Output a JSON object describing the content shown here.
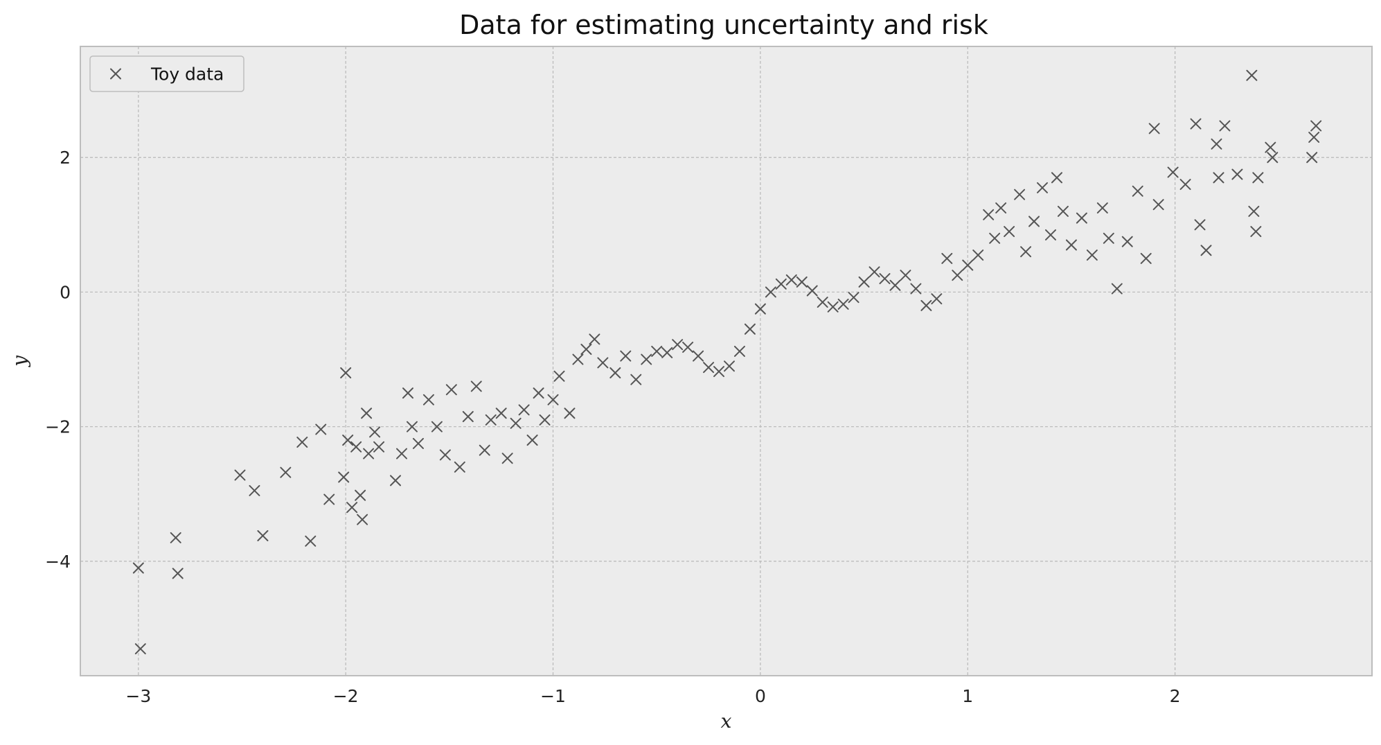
{
  "chart_data": {
    "type": "scatter",
    "title": "Data for estimating uncertainty and risk",
    "xlabel": "x",
    "ylabel": "y",
    "xlim": [
      -3.28,
      2.95
    ],
    "ylim": [
      -5.7,
      3.65
    ],
    "xticks": [
      -3,
      -2,
      -1,
      0,
      1,
      2
    ],
    "xtick_labels": [
      "−3",
      "−2",
      "−1",
      "0",
      "1",
      "2"
    ],
    "yticks": [
      -4,
      -2,
      0,
      2
    ],
    "ytick_labels": [
      "−4",
      "−2",
      "0",
      "2"
    ],
    "grid": true,
    "legend_position": "top-left",
    "marker": "x",
    "colors": {
      "marker": "#555555",
      "axes_bg": "#ececec",
      "grid": "#b8b8b8",
      "spine": "#bdbdbd"
    },
    "series": [
      {
        "name": "Toy data",
        "x": [
          -3.0,
          -2.99,
          -2.82,
          -2.81,
          -2.51,
          -2.44,
          -2.4,
          -2.29,
          -2.21,
          -2.17,
          -2.12,
          -2.08,
          -2.01,
          -2.0,
          -1.99,
          -1.97,
          -1.95,
          -1.93,
          -1.92,
          -1.9,
          -1.89,
          -1.86,
          -1.84,
          -1.76,
          -1.73,
          -1.7,
          -1.68,
          -1.65,
          -1.6,
          -1.56,
          -1.52,
          -1.49,
          -1.45,
          -1.41,
          -1.37,
          -1.33,
          -1.3,
          -1.25,
          -1.22,
          -1.18,
          -1.14,
          -1.1,
          -1.07,
          -1.04,
          -1.0,
          -0.97,
          -0.92,
          -0.88,
          -0.84,
          -0.8,
          -0.76,
          -0.7,
          -0.65,
          -0.6,
          -0.55,
          -0.5,
          -0.45,
          -0.4,
          -0.35,
          -0.3,
          -0.25,
          -0.2,
          -0.15,
          -0.1,
          -0.05,
          0.0,
          0.05,
          0.1,
          0.15,
          0.2,
          0.25,
          0.3,
          0.35,
          0.4,
          0.45,
          0.5,
          0.55,
          0.6,
          0.65,
          0.7,
          0.75,
          0.8,
          0.85,
          0.9,
          0.95,
          1.0,
          1.05,
          1.1,
          1.13,
          1.16,
          1.2,
          1.25,
          1.28,
          1.32,
          1.36,
          1.4,
          1.43,
          1.46,
          1.5,
          1.55,
          1.6,
          1.65,
          1.68,
          1.72,
          1.77,
          1.82,
          1.86,
          1.9,
          1.92,
          1.99,
          2.05,
          2.1,
          2.12,
          2.15,
          2.2,
          2.21,
          2.24,
          2.3,
          2.37,
          2.38,
          2.39,
          2.4,
          2.46,
          2.47,
          2.66,
          2.67,
          2.68
        ],
        "y": [
          -4.1,
          -5.3,
          -3.65,
          -4.18,
          -2.72,
          -2.95,
          -3.62,
          -2.68,
          -2.23,
          -3.7,
          -2.04,
          -3.08,
          -2.75,
          -1.2,
          -2.2,
          -3.2,
          -2.3,
          -3.02,
          -3.38,
          -1.8,
          -2.4,
          -2.08,
          -2.3,
          -2.8,
          -2.4,
          -1.5,
          -2.0,
          -2.25,
          -1.6,
          -2.0,
          -2.42,
          -1.45,
          -2.6,
          -1.85,
          -1.4,
          -2.35,
          -1.9,
          -1.8,
          -2.47,
          -1.95,
          -1.75,
          -2.2,
          -1.5,
          -1.9,
          -1.6,
          -1.25,
          -1.8,
          -1.0,
          -0.85,
          -0.7,
          -1.05,
          -1.2,
          -0.95,
          -1.3,
          -1.0,
          -0.88,
          -0.9,
          -0.78,
          -0.82,
          -0.95,
          -1.12,
          -1.18,
          -1.1,
          -0.88,
          -0.55,
          -0.25,
          0.0,
          0.12,
          0.18,
          0.15,
          0.02,
          -0.15,
          -0.22,
          -0.18,
          -0.08,
          0.15,
          0.3,
          0.2,
          0.1,
          0.25,
          0.05,
          -0.2,
          -0.1,
          0.5,
          0.25,
          0.4,
          0.55,
          1.15,
          0.8,
          1.25,
          0.9,
          1.45,
          0.6,
          1.05,
          1.55,
          0.85,
          1.7,
          1.2,
          0.7,
          1.1,
          0.55,
          1.25,
          0.8,
          0.05,
          0.75,
          1.5,
          0.5,
          2.43,
          1.3,
          1.78,
          1.6,
          2.5,
          1.0,
          0.62,
          2.2,
          1.7,
          2.47,
          1.75,
          3.22,
          1.2,
          0.9,
          1.7,
          2.15,
          2.0,
          2.0,
          2.3,
          2.47
        ]
      }
    ]
  }
}
